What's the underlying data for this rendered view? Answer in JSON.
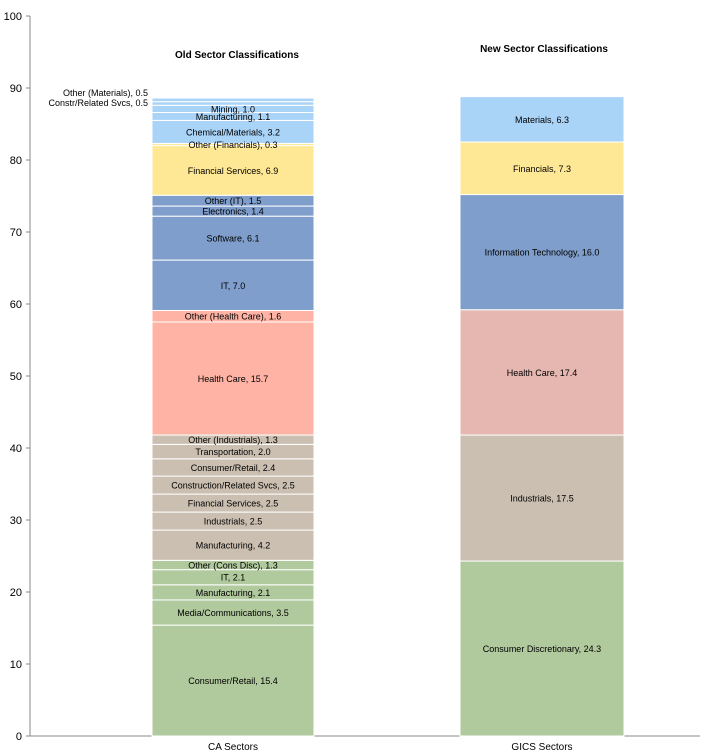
{
  "chart_data": {
    "type": "bar",
    "stacked": true,
    "categories": [
      "CA Sectors",
      "GICS Sectors"
    ],
    "ylim": [
      0,
      100
    ],
    "yticks": [
      0,
      10,
      20,
      30,
      40,
      50,
      60,
      70,
      80,
      90,
      100
    ],
    "grid": false,
    "legend": "none",
    "titles": [
      "Old Sector Classifications",
      "New Sector Classifications"
    ],
    "stacks": [
      {
        "category": "CA Sectors",
        "title": "Old Sector Classifications",
        "segments": [
          {
            "name": "Consumer/Retail",
            "value": 15.4,
            "label": "Consumer/Retail, 15.4",
            "color": "#b0c99d"
          },
          {
            "name": "Media/Communications",
            "value": 3.5,
            "label": "Media/Communications, 3.5",
            "color": "#b0c99d"
          },
          {
            "name": "Manufacturing",
            "value": 2.1,
            "label": "Manufacturing, 2.1",
            "color": "#b0c99d"
          },
          {
            "name": "IT",
            "value": 2.1,
            "label": "IT, 2.1",
            "color": "#b0c99d"
          },
          {
            "name": "Other (Cons Disc)",
            "value": 1.3,
            "label": "Other (Cons Disc), 1.3",
            "color": "#b0c99d"
          },
          {
            "name": "Manufacturing",
            "value": 4.2,
            "label": "Manufacturing, 4.2",
            "color": "#cbbfb1"
          },
          {
            "name": "Industrials",
            "value": 2.5,
            "label": "Industrials, 2.5",
            "color": "#cbbfb1"
          },
          {
            "name": "Financial Services",
            "value": 2.5,
            "label": "Financial Services, 2.5",
            "color": "#cbbfb1"
          },
          {
            "name": "Construction/Related Svcs",
            "value": 2.5,
            "label": "Construction/Related Svcs, 2.5",
            "color": "#cbbfb1"
          },
          {
            "name": "Consumer/Retail",
            "value": 2.4,
            "label": "Consumer/Retail, 2.4",
            "color": "#cbbfb1"
          },
          {
            "name": "Transportation",
            "value": 2.0,
            "label": "Transportation, 2.0",
            "color": "#cbbfb1"
          },
          {
            "name": "Other (Industrials)",
            "value": 1.3,
            "label": "Other (Industrials), 1.3",
            "color": "#cbbfb1"
          },
          {
            "name": "Health Care",
            "value": 15.7,
            "label": "Health Care, 15.7",
            "color": "#ffb3a5"
          },
          {
            "name": "Other (Health Care)",
            "value": 1.6,
            "label": "Other (Health Care), 1.6",
            "color": "#ffb3a5"
          },
          {
            "name": "IT",
            "value": 7.0,
            "label": "IT, 7.0",
            "color": "#7f9ecb"
          },
          {
            "name": "Software",
            "value": 6.1,
            "label": "Software, 6.1",
            "color": "#7f9ecb"
          },
          {
            "name": "Electronics",
            "value": 1.4,
            "label": "Electronics, 1.4",
            "color": "#7f9ecb"
          },
          {
            "name": "Other (IT)",
            "value": 1.5,
            "label": "Other (IT), 1.5",
            "color": "#7f9ecb"
          },
          {
            "name": "Financial Services",
            "value": 6.9,
            "label": "Financial Services, 6.9",
            "color": "#ffe895"
          },
          {
            "name": "Other (Financials)",
            "value": 0.3,
            "label": "Other (Financials), 0.3",
            "color": "#ffe895"
          },
          {
            "name": "Chemical/Materials",
            "value": 3.2,
            "label": "Chemical/Materials, 3.2",
            "color": "#a9d3f7"
          },
          {
            "name": "Manufacturing",
            "value": 1.1,
            "label": "Manufacturing, 1.1",
            "color": "#a9d3f7"
          },
          {
            "name": "Mining",
            "value": 1.0,
            "label": "Mining, 1.0",
            "color": "#a9d3f7"
          },
          {
            "name": "Constr/Related Svcs",
            "value": 0.5,
            "label": "Constr/Related Svcs, 0.5",
            "color": "#a9d3f7"
          },
          {
            "name": "Other (Materials)",
            "value": 0.5,
            "label": "Other (Materials), 0.5",
            "color": "#a9d3f7"
          }
        ]
      },
      {
        "category": "GICS Sectors",
        "title": "New Sector Classifications",
        "segments": [
          {
            "name": "Consumer Discretionary",
            "value": 24.3,
            "label": "Consumer Discretionary, 24.3",
            "color": "#b0c99d"
          },
          {
            "name": "Industrials",
            "value": 17.5,
            "label": "Industrials, 17.5",
            "color": "#cbbfb1"
          },
          {
            "name": "Health Care",
            "value": 17.4,
            "label": "Health Care, 17.4",
            "color": "#e6b7b0"
          },
          {
            "name": "Information Technology",
            "value": 16.0,
            "label": "Information Technology, 16.0",
            "color": "#7f9ecb"
          },
          {
            "name": "Financials",
            "value": 7.3,
            "label": "Financials, 7.3",
            "color": "#ffe895"
          },
          {
            "name": "Materials",
            "value": 6.3,
            "label": "Materials, 6.3",
            "color": "#a9d3f7"
          }
        ]
      }
    ]
  }
}
